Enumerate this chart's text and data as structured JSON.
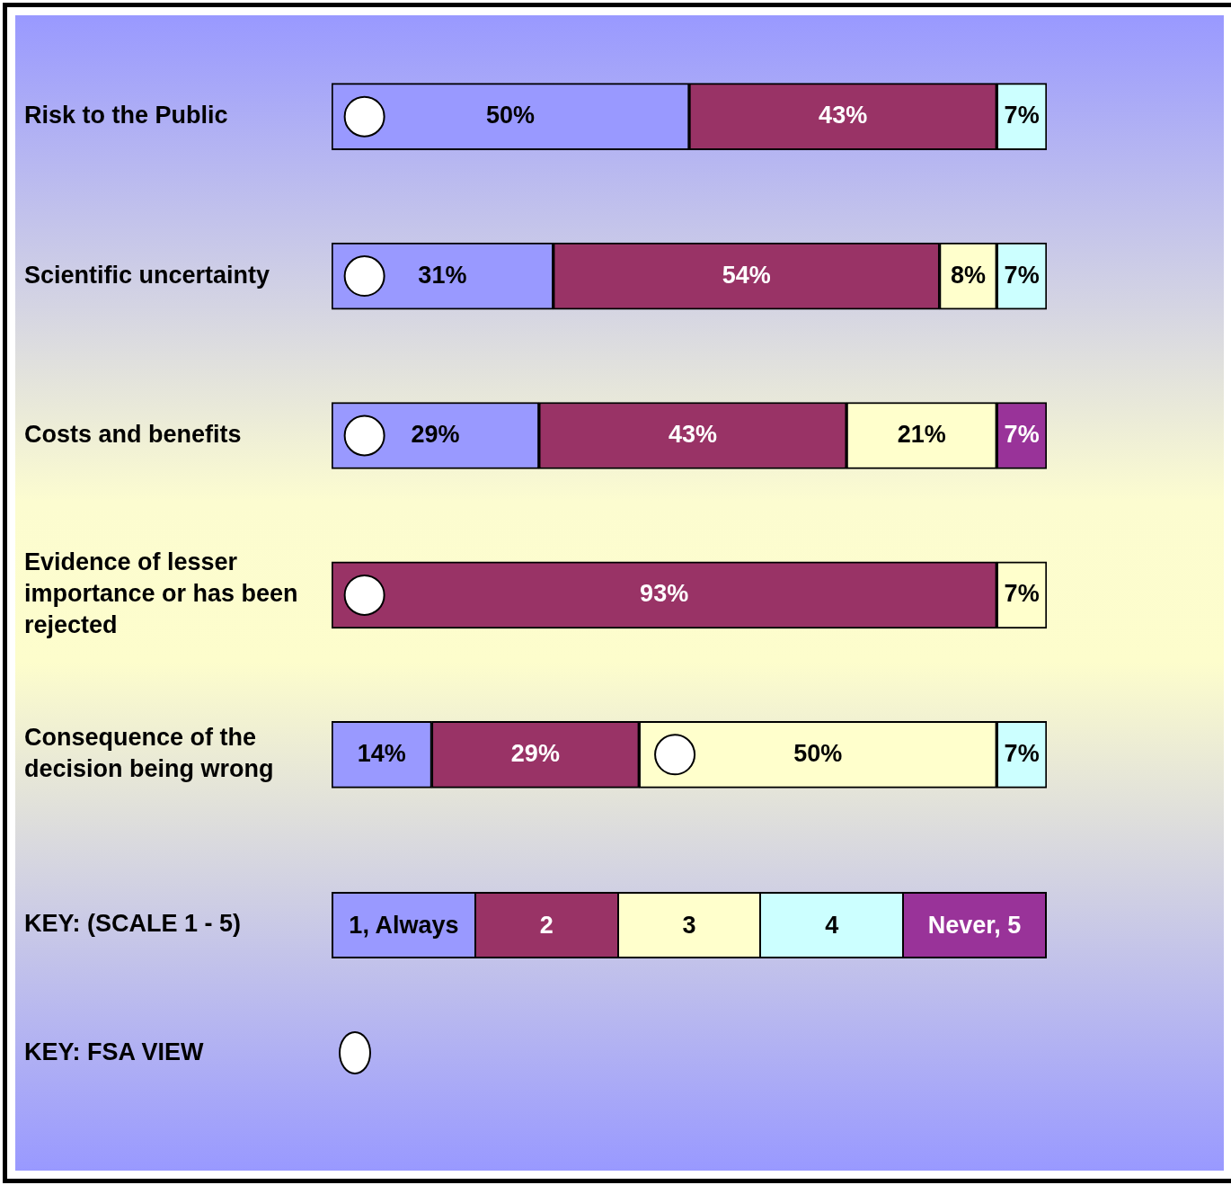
{
  "chart_data": {
    "type": "bar",
    "orientation": "horizontal",
    "stacked": true,
    "categories": [
      "Risk to the Public",
      "Scientific uncertainty",
      "Costs and benefits",
      "Evidence of lesser importance or has been rejected",
      "Consequence of the decision being wrong"
    ],
    "xlim": [
      0,
      100
    ],
    "tick_labels": "y",
    "legend": "bottom",
    "legend_title": "KEY: (SCALE 1 - 5)",
    "marker": "circle",
    "series": [
      {
        "name": "1, Always",
        "color": "#9999ff",
        "values": [
          50,
          31,
          29,
          null,
          14
        ],
        "value_labels": [
          "50%",
          "31%",
          "29%",
          null,
          "14%"
        ]
      },
      {
        "name": "2",
        "color": "#993366",
        "values": [
          43,
          54,
          43,
          93,
          29
        ],
        "value_labels": [
          "43%",
          "54%",
          "43%",
          "93%",
          "29%"
        ]
      },
      {
        "name": "3",
        "color": "#ffffcc",
        "values": [
          null,
          8,
          21,
          7,
          50
        ],
        "value_labels": [
          null,
          "8%",
          "21%",
          "7%",
          "50%"
        ]
      },
      {
        "name": "4",
        "color": "#ccffff",
        "values": [
          7,
          7,
          null,
          null,
          7
        ],
        "value_labels": [
          "7%",
          "7%",
          null,
          null,
          "7%"
        ]
      },
      {
        "name": "Never, 5",
        "color": "#993399",
        "values": [
          null,
          null,
          7,
          null,
          null
        ],
        "value_labels": [
          null,
          null,
          "7%",
          null,
          null
        ]
      },
      {
        "type": "scatter",
        "name": "KEY: FSA VIEW",
        "color": "#ffffff",
        "x": [
          "Risk to the Public",
          "Scientific uncertainty",
          "Costs and benefits",
          "Evidence of lesser importance or has been rejected",
          "Consequence of the decision being wrong"
        ],
        "values": [
          4.6,
          4.6,
          4.6,
          4.6,
          48
        ]
      }
    ]
  }
}
